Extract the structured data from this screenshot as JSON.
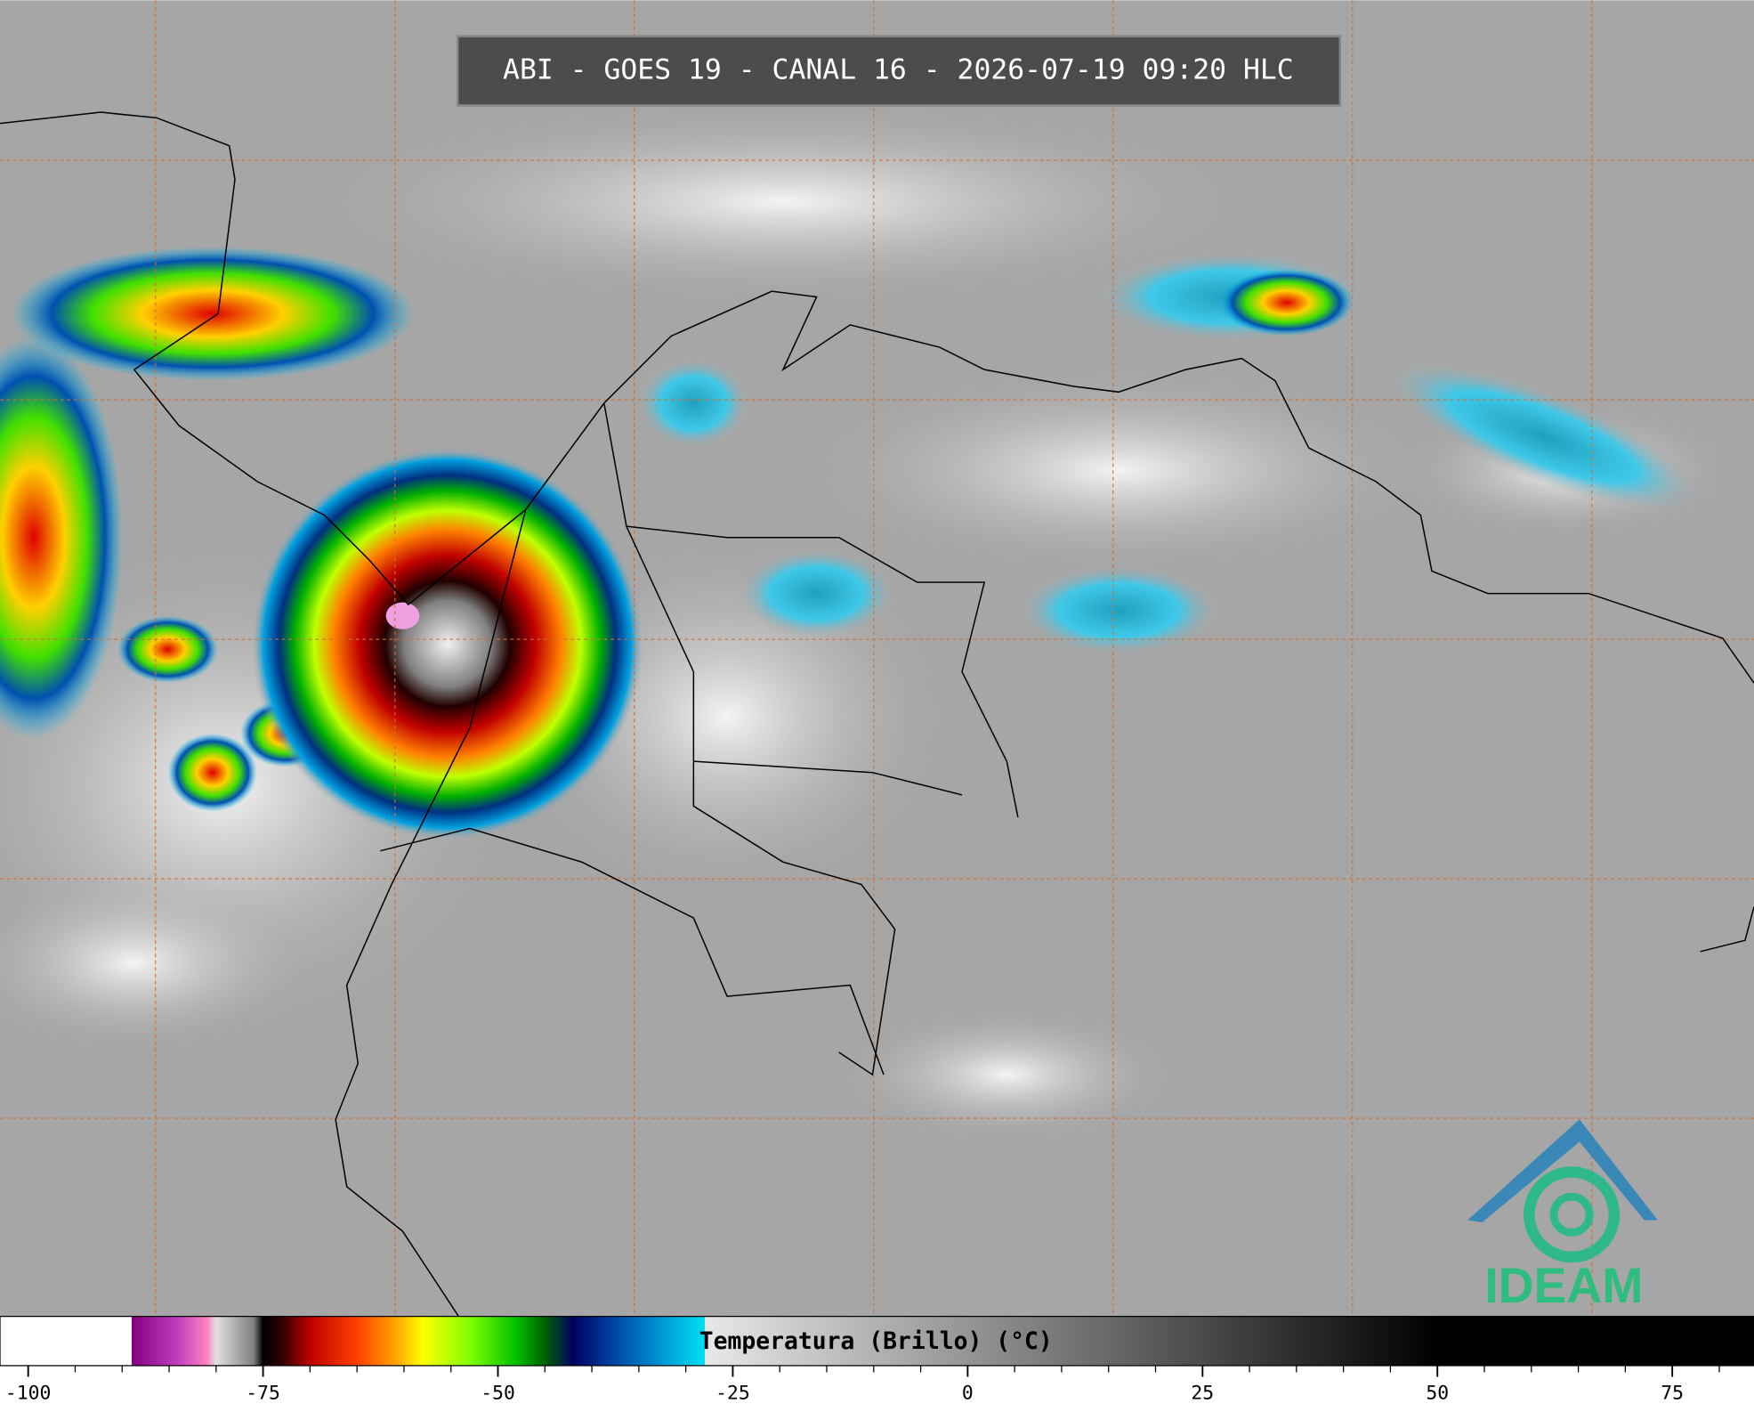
{
  "header": {
    "title": "ABI - GOES 19 - CANAL 16 - 2026-07-19 09:20 HLC"
  },
  "logo": {
    "text": "IDEAM"
  },
  "colorbar": {
    "label": "Temperatura (Brillo) (°C)",
    "xlim": [
      -103,
      83.7
    ],
    "xticks": [
      -100,
      -75,
      -50,
      -25,
      0,
      25,
      50,
      75
    ],
    "minor_ticks": [
      -95,
      -90,
      -85,
      -80,
      -70,
      -65,
      -60,
      -55,
      -45,
      -40,
      -35,
      -30,
      -20,
      -15,
      -10,
      -5,
      5,
      10,
      15,
      20,
      30,
      35,
      40,
      45,
      55,
      60,
      65,
      70,
      80
    ],
    "colorscale": [
      {
        "value": -103,
        "color": "#ffffff"
      },
      {
        "value": -89,
        "color": "#ffffff"
      },
      {
        "value": -89,
        "color": "#800080"
      },
      {
        "value": -84,
        "color": "#c040c0"
      },
      {
        "value": -81,
        "color": "#ff80c0"
      },
      {
        "value": -80,
        "color": "#e0e0e0"
      },
      {
        "value": -76,
        "color": "#808080"
      },
      {
        "value": -75,
        "color": "#000000"
      },
      {
        "value": -73,
        "color": "#300000"
      },
      {
        "value": -70,
        "color": "#c00000"
      },
      {
        "value": -65,
        "color": "#ff4000"
      },
      {
        "value": -61,
        "color": "#ffa000"
      },
      {
        "value": -58,
        "color": "#ffff00"
      },
      {
        "value": -53,
        "color": "#80ff00"
      },
      {
        "value": -48,
        "color": "#00c000"
      },
      {
        "value": -45,
        "color": "#006000"
      },
      {
        "value": -42,
        "color": "#000060"
      },
      {
        "value": -38,
        "color": "#0040a0"
      },
      {
        "value": -33,
        "color": "#0090d0"
      },
      {
        "value": -28,
        "color": "#00e0f0"
      },
      {
        "value": -28,
        "color": "#e8e8e8"
      },
      {
        "value": 50,
        "color": "#000000"
      },
      {
        "value": 83.7,
        "color": "#000000"
      }
    ]
  }
}
